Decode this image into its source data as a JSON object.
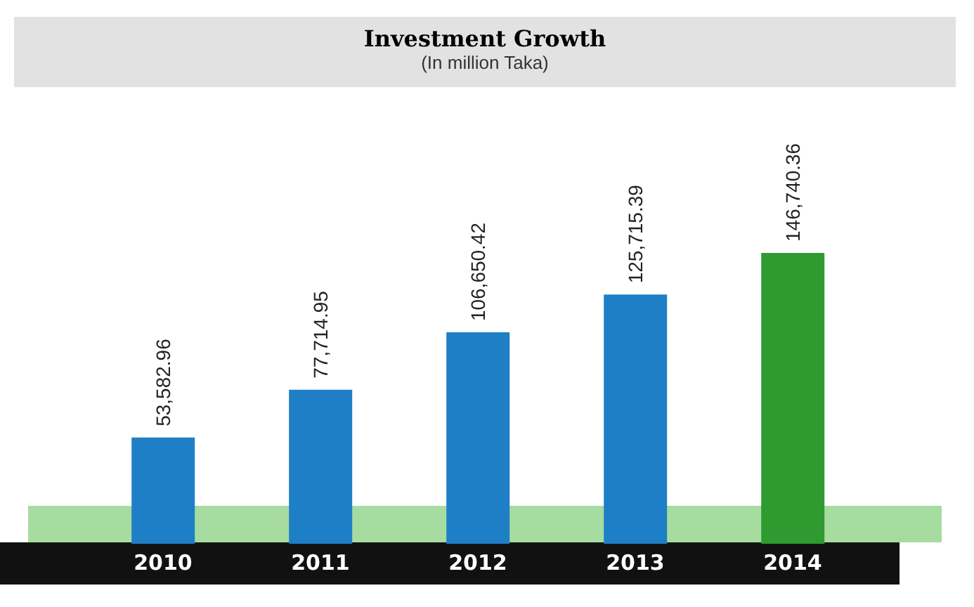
{
  "chart_data": {
    "type": "bar",
    "title": "Investment Growth",
    "subtitle": "(In million Taka)",
    "categories": [
      "2010",
      "2011",
      "2012",
      "2013",
      "2014"
    ],
    "values": [
      53582.96,
      77714.95,
      106650.42,
      125715.39,
      146740.36
    ],
    "colors": [
      "#1e7fc6",
      "#1e7fc6",
      "#1e7fc6",
      "#1e7fc6",
      "#2f9a2f"
    ],
    "value_labels": [
      "53,582.96",
      "77,714.95",
      "106,650.42",
      "125,715.39",
      "146,740.36"
    ],
    "grid": false,
    "legend": false
  }
}
